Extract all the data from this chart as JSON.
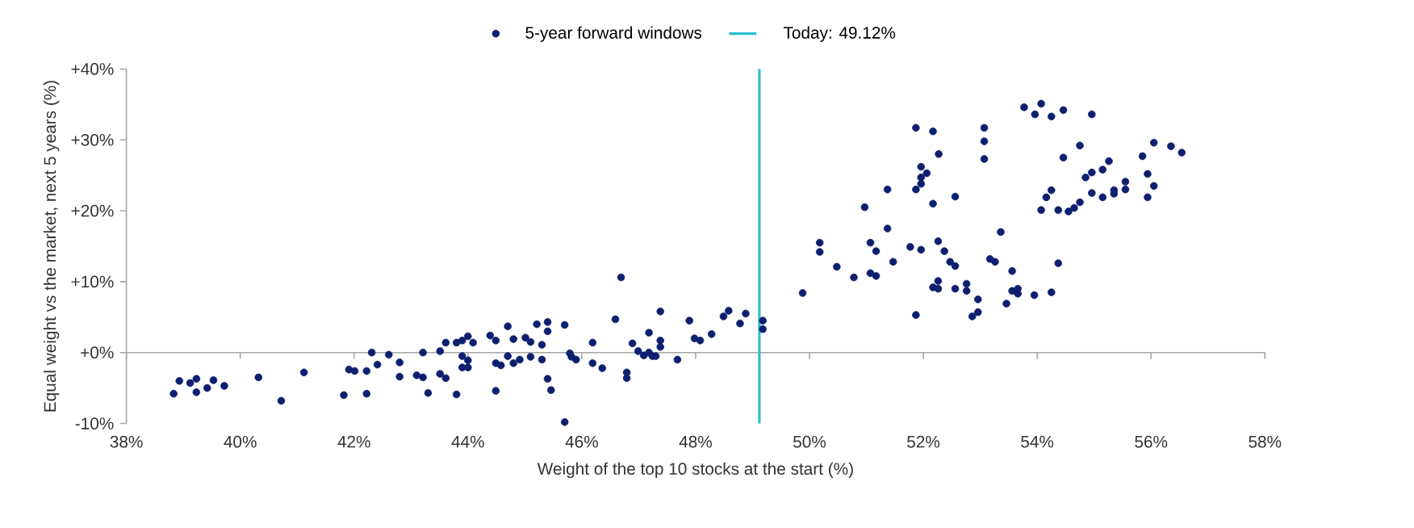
{
  "chart_data": {
    "type": "scatter",
    "xlabel": "Weight of the top 10 stocks at the start (%)",
    "ylabel": "Equal weight vs the market, next 5 years (%)",
    "xlim": [
      38,
      58
    ],
    "xticks": [
      {
        "value": 38,
        "label": "38%"
      },
      {
        "value": 40,
        "label": "40%"
      },
      {
        "value": 42,
        "label": "42%"
      },
      {
        "value": 44,
        "label": "44%"
      },
      {
        "value": 46,
        "label": "46%"
      },
      {
        "value": 48,
        "label": "48%"
      },
      {
        "value": 50,
        "label": "50%"
      },
      {
        "value": 52,
        "label": "52%"
      },
      {
        "value": 54,
        "label": "54%"
      },
      {
        "value": 56,
        "label": "56%"
      },
      {
        "value": 58,
        "label": "58%"
      }
    ],
    "ylim": [
      -10,
      40
    ],
    "yticks": [
      {
        "value": -10,
        "label": "-10%"
      },
      {
        "value": 0,
        "label": "+0%"
      },
      {
        "value": 10,
        "label": "+10%"
      },
      {
        "value": 20,
        "label": "+20%"
      },
      {
        "value": 30,
        "label": "+30%"
      },
      {
        "value": 40,
        "label": "+40%"
      }
    ],
    "marker": "circle",
    "legend": "top",
    "ref_lines": [
      {
        "axis": "x",
        "value": 49.12,
        "label": "Today: 49.12%",
        "color": "#2bbfd0"
      }
    ],
    "series": [
      {
        "name": "5-year forward windows",
        "color": "#0d1f6e",
        "x": [
          38.83,
          38.93,
          39.12,
          39.23,
          39.23,
          39.42,
          39.53,
          39.72,
          40.32,
          40.72,
          41.12,
          41.82,
          41.91,
          42.01,
          42.22,
          42.22,
          42.31,
          42.41,
          42.61,
          42.8,
          42.8,
          43.1,
          43.21,
          43.21,
          43.3,
          43.51,
          43.51,
          43.61,
          43.61,
          43.8,
          43.8,
          43.9,
          43.9,
          43.9,
          44.0,
          44.0,
          44.0,
          44.09,
          44.39,
          44.49,
          44.49,
          44.49,
          44.58,
          44.7,
          44.7,
          44.8,
          44.8,
          44.91,
          45.01,
          45.1,
          45.1,
          45.21,
          45.3,
          45.3,
          45.4,
          45.4,
          45.4,
          45.46,
          45.7,
          45.7,
          45.79,
          45.82,
          45.9,
          46.19,
          46.19,
          46.36,
          46.59,
          46.69,
          46.79,
          46.79,
          46.89,
          46.99,
          47.09,
          47.18,
          47.18,
          47.24,
          47.3,
          47.38,
          47.38,
          47.38,
          47.68,
          47.89,
          47.98,
          48.08,
          48.28,
          48.49,
          48.58,
          48.78,
          48.88,
          49.18,
          49.18,
          49.88,
          50.18,
          50.18,
          50.48,
          50.78,
          50.97,
          51.07,
          51.07,
          51.17,
          51.17,
          51.37,
          51.37,
          51.47,
          51.77,
          51.87,
          51.87,
          51.96,
          51.96,
          51.96,
          51.96,
          52.06,
          52.17,
          52.26,
          52.26,
          52.26,
          52.17,
          52.37,
          52.47,
          52.56,
          52.56,
          52.56,
          52.76,
          52.76,
          52.96,
          52.96,
          52.86,
          53.17,
          53.26,
          53.36,
          53.46,
          53.56,
          53.56,
          53.66,
          53.66,
          53.95,
          51.87,
          52.17,
          53.07,
          53.07,
          53.07,
          52.27,
          53.77,
          54.07,
          53.96,
          54.25,
          54.46,
          54.96,
          54.75,
          54.46,
          54.07,
          54.16,
          54.25,
          54.37,
          54.37,
          54.55,
          54.65,
          54.75,
          54.85,
          54.96,
          54.96,
          55.15,
          55.15,
          55.26,
          55.35,
          55.35,
          55.55,
          55.55,
          55.85,
          55.94,
          55.94,
          56.05,
          56.05,
          56.35,
          56.54,
          54.25
        ],
        "values": [
          -5.8,
          -4.0,
          -4.3,
          -3.7,
          -5.6,
          -5.0,
          -3.9,
          -4.7,
          -3.5,
          -6.8,
          -2.8,
          -6.0,
          -2.4,
          -2.6,
          -2.6,
          -5.8,
          0.0,
          -1.7,
          -0.3,
          -1.4,
          -3.4,
          -3.2,
          0.0,
          -3.5,
          -5.7,
          0.2,
          -3.0,
          1.4,
          -3.6,
          1.4,
          -5.9,
          1.7,
          -0.5,
          -2.1,
          2.3,
          -1.1,
          -2.1,
          1.4,
          2.4,
          1.7,
          -1.5,
          -5.4,
          -1.8,
          3.7,
          -0.5,
          1.9,
          -1.5,
          -1.0,
          2.1,
          1.5,
          -0.6,
          4.0,
          1.1,
          -1.0,
          4.3,
          3.0,
          -3.7,
          -5.3,
          3.9,
          -9.8,
          -0.1,
          -0.6,
          -1.0,
          1.4,
          -1.5,
          -2.2,
          4.7,
          10.6,
          -2.8,
          -3.6,
          1.3,
          0.2,
          -0.4,
          2.8,
          0.0,
          -0.5,
          -0.5,
          5.8,
          1.7,
          0.8,
          -1.0,
          4.5,
          2.0,
          1.7,
          2.6,
          5.1,
          5.9,
          4.1,
          5.5,
          4.5,
          3.3,
          8.4,
          15.5,
          14.2,
          12.1,
          10.6,
          20.5,
          15.5,
          11.2,
          14.3,
          10.8,
          23.0,
          17.5,
          12.8,
          14.9,
          23.0,
          5.3,
          26.2,
          24.7,
          23.8,
          14.5,
          25.3,
          21.0,
          15.7,
          10.1,
          9.0,
          9.2,
          14.3,
          12.8,
          12.2,
          22.0,
          9.0,
          9.7,
          8.7,
          7.5,
          5.7,
          5.1,
          13.2,
          12.8,
          17.0,
          6.9,
          11.5,
          8.7,
          9.0,
          8.3,
          8.1,
          31.7,
          31.2,
          31.7,
          29.8,
          27.3,
          28.0,
          34.6,
          35.1,
          33.6,
          33.3,
          34.2,
          33.6,
          29.2,
          27.5,
          20.1,
          21.9,
          22.9,
          20.1,
          12.6,
          19.9,
          20.4,
          21.2,
          24.7,
          25.4,
          22.5,
          25.8,
          21.9,
          27.0,
          22.9,
          22.4,
          24.1,
          23.0,
          27.7,
          25.2,
          21.9,
          29.6,
          23.5,
          29.1,
          28.2,
          8.5
        ]
      }
    ]
  }
}
